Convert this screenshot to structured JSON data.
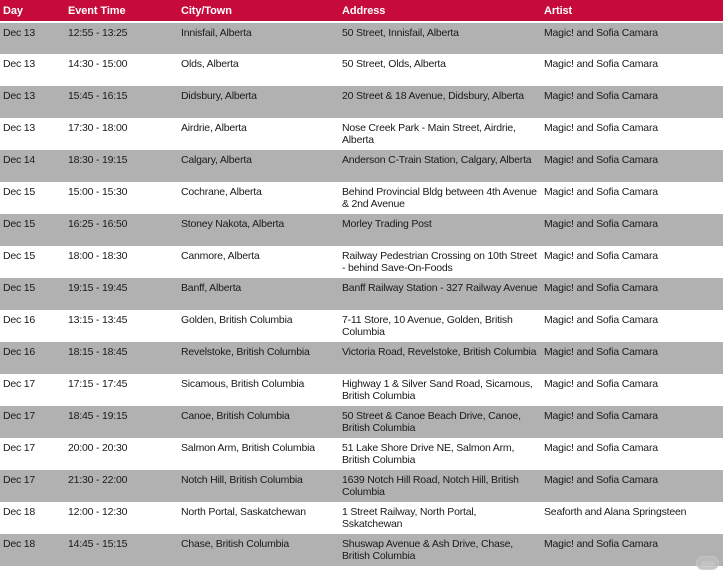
{
  "colors": {
    "header_bg": "#C60A3A",
    "header_text": "#FFFFFF",
    "row_bg": "#FFFFFF",
    "row_alt_bg": "#B1B1B1",
    "cell_text": "#1A1A1A"
  },
  "table": {
    "columns": [
      "Day",
      "Event Time",
      "City/Town",
      "Address",
      "Artist"
    ],
    "rows": [
      {
        "day": "Dec 13",
        "time": "12:55 - 13:25",
        "city": "Innisfail, Alberta",
        "address": "50 Street, Innisfail, Alberta",
        "artist": "Magic! and Sofia Camara"
      },
      {
        "day": "Dec 13",
        "time": "14:30 - 15:00",
        "city": "Olds, Alberta",
        "address": "50 Street, Olds, Alberta",
        "artist": "Magic! and Sofia Camara"
      },
      {
        "day": "Dec 13",
        "time": "15:45 - 16:15",
        "city": "Didsbury, Alberta",
        "address": "20 Street & 18 Avenue, Didsbury, Alberta",
        "artist": "Magic! and Sofia Camara"
      },
      {
        "day": "Dec 13",
        "time": "17:30 - 18:00",
        "city": "Airdrie, Alberta",
        "address": "Nose Creek Park - Main Street, Airdrie, Alberta",
        "artist": "Magic! and Sofia Camara"
      },
      {
        "day": "Dec 14",
        "time": "18:30 - 19:15",
        "city": "Calgary, Alberta",
        "address": "Anderson C-Train Station, Calgary, Alberta",
        "artist": "Magic! and Sofia Camara"
      },
      {
        "day": "Dec 15",
        "time": "15:00 - 15:30",
        "city": "Cochrane, Alberta",
        "address": "Behind Provincial Bldg between 4th Avenue & 2nd Avenue",
        "artist": "Magic! and Sofia Camara"
      },
      {
        "day": "Dec 15",
        "time": "16:25 - 16:50",
        "city": "Stoney Nakota, Alberta",
        "address": "Morley Trading Post",
        "artist": "Magic! and Sofia Camara"
      },
      {
        "day": "Dec 15",
        "time": "18:00 - 18:30",
        "city": "Canmore, Alberta",
        "address": "Railway Pedestrian Crossing on 10th Street - behind Save-On-Foods",
        "artist": "Magic! and Sofia Camara"
      },
      {
        "day": "Dec 15",
        "time": "19:15 - 19:45",
        "city": "Banff, Alberta",
        "address": "Banff Railway Station - 327 Railway Avenue",
        "artist": "Magic! and Sofia Camara"
      },
      {
        "day": "Dec 16",
        "time": "13:15 - 13:45",
        "city": "Golden, British Columbia",
        "address": "7-11 Store, 10 Avenue, Golden, British Columbia",
        "artist": "Magic! and Sofia Camara"
      },
      {
        "day": "Dec 16",
        "time": "18:15 - 18:45",
        "city": "Revelstoke, British Columbia",
        "address": "Victoria Road, Revelstoke, British Columbia",
        "artist": "Magic! and Sofia Camara"
      },
      {
        "day": "Dec 17",
        "time": "17:15 - 17:45",
        "city": "Sicamous, British Columbia",
        "address": "Highway 1 & Silver Sand Road, Sicamous, British Columbia",
        "artist": "Magic! and Sofia Camara"
      },
      {
        "day": "Dec 17",
        "time": "18:45 - 19:15",
        "city": "Canoe, British Columbia",
        "address": "50 Street & Canoe Beach Drive, Canoe, British Columbia",
        "artist": "Magic! and Sofia Camara"
      },
      {
        "day": "Dec 17",
        "time": "20:00 - 20:30",
        "city": "Salmon Arm, British Columbia",
        "address": "51 Lake Shore Drive NE, Salmon Arm, British Columbia",
        "artist": "Magic! and Sofia Camara"
      },
      {
        "day": "Dec 17",
        "time": "21:30 - 22:00",
        "city": "Notch Hill, British Columbia",
        "address": "1639 Notch Hill Road, Notch Hill, British Columbia",
        "artist": "Magic! and Sofia Camara"
      },
      {
        "day": "Dec 18",
        "time": "12:00 - 12:30",
        "city": "North Portal, Saskatchewan",
        "address": "1 Street Railway, North Portal, Sskatchewan",
        "artist": "Seaforth and Alana Springsteen"
      },
      {
        "day": "Dec 18",
        "time": "14:45 - 15:15",
        "city": "Chase, British Columbia",
        "address": "Shuswap Avenue & Ash Drive, Chase, British Columbia",
        "artist": "Magic! and Sofia Camara"
      }
    ]
  }
}
